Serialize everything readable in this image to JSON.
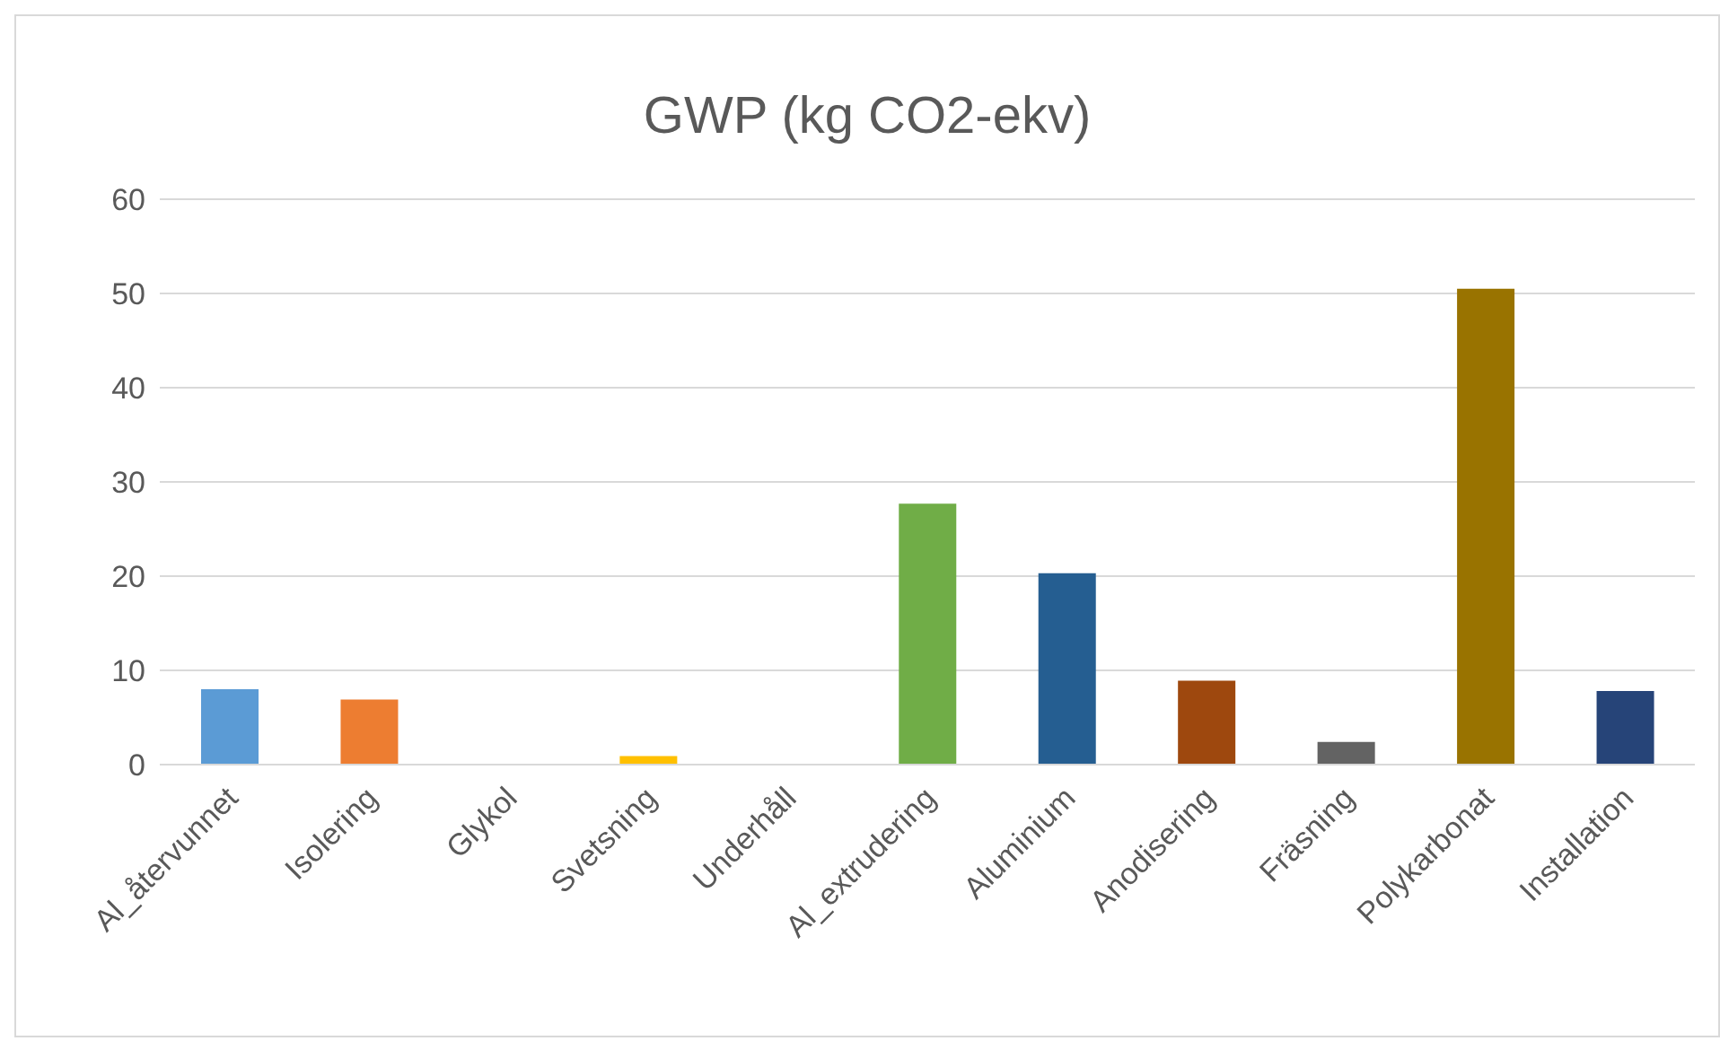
{
  "chart_data": {
    "type": "bar",
    "title": "GWP (kg CO2-ekv)",
    "categories": [
      "Al_återvunnet",
      "Isolering",
      "Glykol",
      "Svetsning",
      "Underhåll",
      "Al_extrudering",
      "Aluminium",
      "Anodisering",
      "Fräsning",
      "Polykarbonat",
      "Installation"
    ],
    "values": [
      8.0,
      6.9,
      0,
      0.9,
      0,
      27.7,
      20.3,
      8.9,
      2.4,
      50.5,
      7.8
    ],
    "colors": [
      "#5b9bd5",
      "#ed7d31",
      "#a5a5a5",
      "#ffc000",
      "#4472c4",
      "#70ad47",
      "#255e91",
      "#9e480e",
      "#636363",
      "#997300",
      "#264478"
    ],
    "ylim": [
      0,
      60
    ],
    "yticks": [
      0,
      10,
      20,
      30,
      40,
      50,
      60
    ],
    "grid": "y"
  }
}
